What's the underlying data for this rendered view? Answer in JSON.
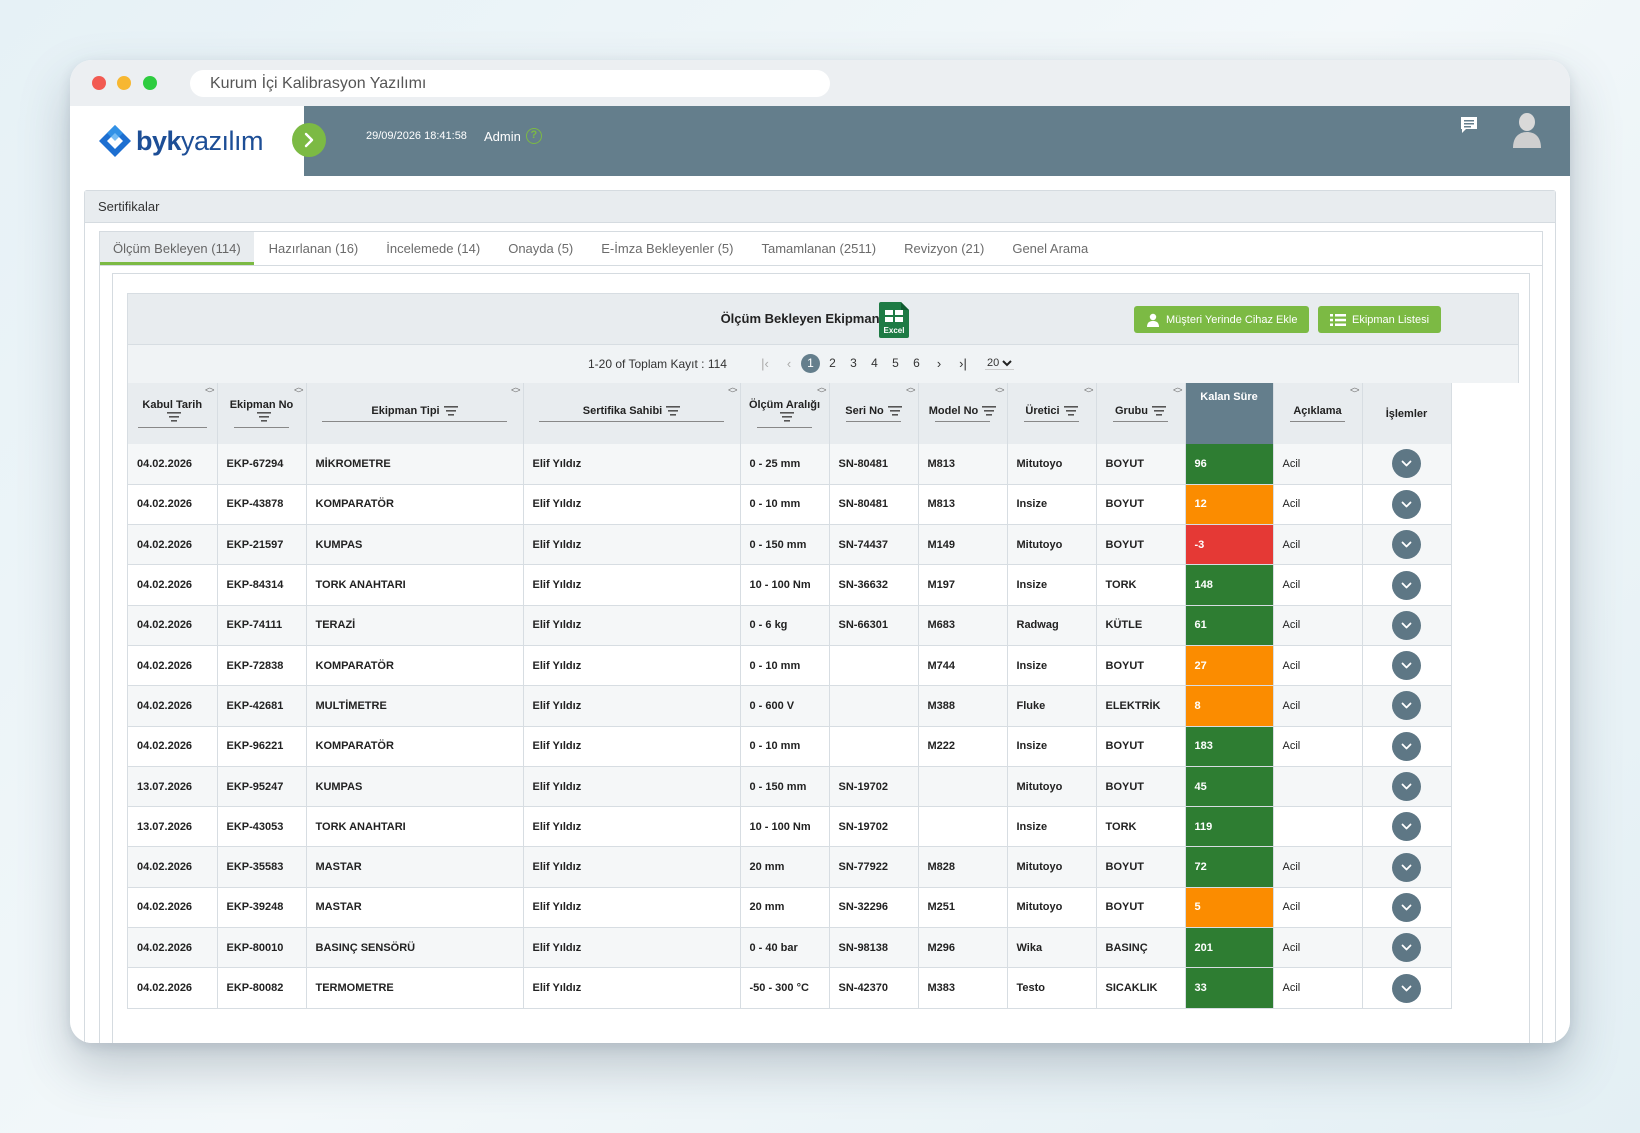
{
  "browser": {
    "url_title": "Kurum İçi Kalibrasyon Yazılımı"
  },
  "header": {
    "logo_bold": "byk",
    "logo_light": "yazılım",
    "datetime": "29/09/2026 18:41:58",
    "user": "Admin",
    "help_glyph": "?"
  },
  "panel": {
    "title": "Sertifikalar"
  },
  "tabs": [
    {
      "label": "Ölçüm Bekleyen (114)",
      "active": true
    },
    {
      "label": "Hazırlanan (16)"
    },
    {
      "label": "İncelemede (14)"
    },
    {
      "label": "Onayda (5)"
    },
    {
      "label": "E-İmza Bekleyenler (5)"
    },
    {
      "label": "Tamamlanan (2511)"
    },
    {
      "label": "Revizyon (21)"
    },
    {
      "label": "Genel Arama"
    }
  ],
  "card": {
    "title": "Ölçüm Bekleyen Ekipmanlar",
    "excel_label": "Excel",
    "btn_customer": "Müşteri Yerinde Cihaz Ekle",
    "btn_list": "Ekipman Listesi"
  },
  "pager": {
    "info": "1-20 of Toplam Kayıt : 114",
    "pages": [
      "1",
      "2",
      "3",
      "4",
      "5",
      "6"
    ],
    "current": "1",
    "page_size": "20"
  },
  "columns": {
    "kabul": "Kabul Tarih",
    "ekipman_no": "Ekipman No",
    "tipi": "Ekipman Tipi",
    "sahibi": "Sertifika Sahibi",
    "aralik": "Ölçüm Aralığı",
    "seri": "Seri No",
    "model": "Model No",
    "uretici": "Üretici",
    "grubu": "Grubu",
    "kalan": "Kalan Süre",
    "aciklama": "Açıklama",
    "islemler": "İşlemler"
  },
  "status_colors": {
    "green": "#2e7d32",
    "orange": "#fb8c00",
    "red": "#e53935"
  },
  "rows": [
    [
      "04.02.2026",
      "EKP-67294",
      "MİKROMETRE",
      "Elif Yıldız",
      "0 - 25 mm",
      "SN-80481",
      "M813",
      "Mitutoyo",
      "BOYUT",
      "96",
      "Acil",
      "green"
    ],
    [
      "04.02.2026",
      "EKP-43878",
      "KOMPARATÖR",
      "Elif Yıldız",
      "0 - 10 mm",
      "SN-80481",
      "M813",
      "Insize",
      "BOYUT",
      "12",
      "Acil",
      "orange"
    ],
    [
      "04.02.2026",
      "EKP-21597",
      "KUMPAS",
      "Elif Yıldız",
      "0 - 150 mm",
      "SN-74437",
      "M149",
      "Mitutoyo",
      "BOYUT",
      "-3",
      "Acil",
      "red"
    ],
    [
      "04.02.2026",
      "EKP-84314",
      "TORK ANAHTARI",
      "Elif Yıldız",
      "10 - 100 Nm",
      "SN-36632",
      "M197",
      "Insize",
      "TORK",
      "148",
      "Acil",
      "green"
    ],
    [
      "04.02.2026",
      "EKP-74111",
      "TERAZİ",
      "Elif Yıldız",
      "0 - 6 kg",
      "SN-66301",
      "M683",
      "Radwag",
      "KÜTLE",
      "61",
      "Acil",
      "green"
    ],
    [
      "04.02.2026",
      "EKP-72838",
      "KOMPARATÖR",
      "Elif Yıldız",
      "0 - 10 mm",
      "",
      "M744",
      "Insize",
      "BOYUT",
      "27",
      "Acil",
      "orange"
    ],
    [
      "04.02.2026",
      "EKP-42681",
      "MULTİMETRE",
      "Elif Yıldız",
      "0 - 600 V",
      "",
      "M388",
      "Fluke",
      "ELEKTRİK",
      "8",
      "Acil",
      "orange"
    ],
    [
      "04.02.2026",
      "EKP-96221",
      "KOMPARATÖR",
      "Elif Yıldız",
      "0 - 10 mm",
      "",
      "M222",
      "Insize",
      "BOYUT",
      "183",
      "Acil",
      "green"
    ],
    [
      "13.07.2026",
      "EKP-95247",
      "KUMPAS",
      "Elif Yıldız",
      "0 - 150 mm",
      "SN-19702",
      "",
      "Mitutoyo",
      "BOYUT",
      "45",
      "",
      "green"
    ],
    [
      "13.07.2026",
      "EKP-43053",
      "TORK ANAHTARI",
      "Elif Yıldız",
      "10 - 100 Nm",
      "SN-19702",
      "",
      "Insize",
      "TORK",
      "119",
      "",
      "green"
    ],
    [
      "04.02.2026",
      "EKP-35583",
      "MASTAR",
      "Elif Yıldız",
      "20 mm",
      "SN-77922",
      "M828",
      "Mitutoyo",
      "BOYUT",
      "72",
      "Acil",
      "green"
    ],
    [
      "04.02.2026",
      "EKP-39248",
      "MASTAR",
      "Elif Yıldız",
      "20 mm",
      "SN-32296",
      "M251",
      "Mitutoyo",
      "BOYUT",
      "5",
      "Acil",
      "orange"
    ],
    [
      "04.02.2026",
      "EKP-80010",
      "BASINÇ SENSÖRÜ",
      "Elif Yıldız",
      "0 - 40 bar",
      "SN-98138",
      "M296",
      "Wika",
      "BASINÇ",
      "201",
      "Acil",
      "green"
    ],
    [
      "04.02.2026",
      "EKP-80082",
      "TERMOMETRE",
      "Elif Yıldız",
      "-50 - 300 °C",
      "SN-42370",
      "M383",
      "Testo",
      "SICAKLIK",
      "33",
      "Acil",
      "green"
    ]
  ]
}
